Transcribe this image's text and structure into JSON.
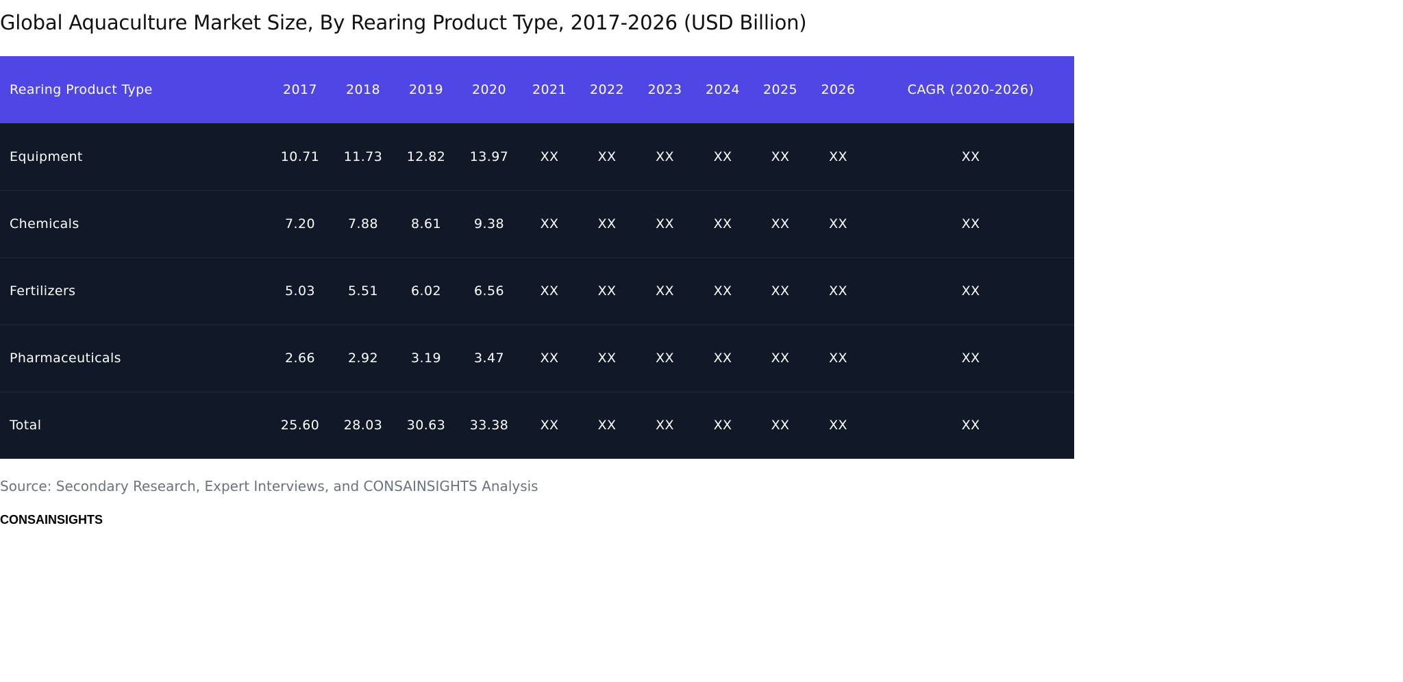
{
  "chart_data": {
    "type": "table",
    "title": "Global Aquaculture Market Size, By Rearing Product Type, 2017-2026 (USD Billion)",
    "columns": [
      "Rearing Product Type",
      "2017",
      "2018",
      "2019",
      "2020",
      "2021",
      "2022",
      "2023",
      "2024",
      "2025",
      "2026",
      "CAGR (2020-2026)"
    ],
    "rows": [
      [
        "Equipment",
        "10.71",
        "11.73",
        "12.82",
        "13.97",
        "XX",
        "XX",
        "XX",
        "XX",
        "XX",
        "XX",
        "XX"
      ],
      [
        "Chemicals",
        "7.20",
        "7.88",
        "8.61",
        "9.38",
        "XX",
        "XX",
        "XX",
        "XX",
        "XX",
        "XX",
        "XX"
      ],
      [
        "Fertilizers",
        "5.03",
        "5.51",
        "6.02",
        "6.56",
        "XX",
        "XX",
        "XX",
        "XX",
        "XX",
        "XX",
        "XX"
      ],
      [
        "Pharmaceuticals",
        "2.66",
        "2.92",
        "3.19",
        "3.47",
        "XX",
        "XX",
        "XX",
        "XX",
        "XX",
        "XX",
        "XX"
      ],
      [
        "Total",
        "25.60",
        "28.03",
        "30.63",
        "33.38",
        "XX",
        "XX",
        "XX",
        "XX",
        "XX",
        "XX",
        "XX"
      ]
    ],
    "source": "Source: Secondary Research, Expert Interviews, and CONSAINSIGHTS Analysis",
    "brand": "CONSAINSIGHTS"
  },
  "colors": {
    "header_bg": "#4f46e5",
    "body_bg": "#111827",
    "row_divider": "#1f2937",
    "header_text": "#ffffff",
    "body_text": "#ffffff",
    "title_text": "#111111",
    "source_text": "#6b7280"
  }
}
